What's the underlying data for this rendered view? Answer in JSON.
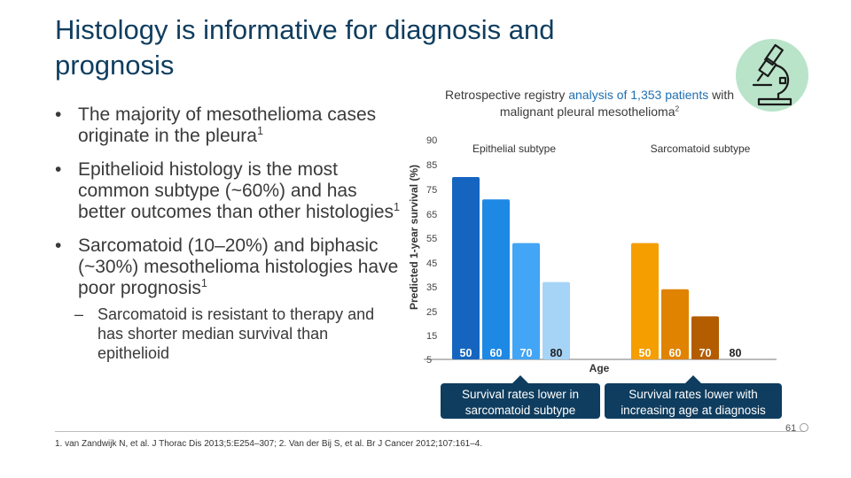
{
  "slide": {
    "title": "Histology is informative for diagnosis and prognosis",
    "page_number": "61"
  },
  "bullets": [
    {
      "text": "The majority of mesothelioma cases originate in the pleura",
      "ref": "1"
    },
    {
      "text": "Epithelioid histology is the most common subtype (~60%) and has better outcomes than other histologies",
      "ref": "1"
    },
    {
      "text": "Sarcomatoid (10–20%) and biphasic (~30%) mesothelioma histologies have poor prognosis",
      "ref": "1"
    }
  ],
  "sub_bullet": "Sarcomatoid is resistant to therapy and has shorter median survival than epithelioid",
  "heading": {
    "pre": "Retrospective registry ",
    "highlight1": "analysis of 1,353 patients",
    "post": " with malignant pleural mesothelioma",
    "ref": "2"
  },
  "callouts": {
    "left": "Survival rates lower in sarcomatoid subtype",
    "right": "Survival rates lower with increasing age at diagnosis"
  },
  "footnote": "1. van Zandwijk N, et al. J Thorac Dis 2013;5:E254–307; 2. Van der Bij S, et al. Br J Cancer 2012;107:161–4.",
  "icon": "microscope-icon",
  "colors": {
    "epithelial": [
      "#1565c0",
      "#1e88e5",
      "#42a5f5",
      "#a6d4f7"
    ],
    "sarcomatoid": [
      "#f59e00",
      "#e08300",
      "#b35c00",
      "#8a4000"
    ],
    "title": "#0f3d5f",
    "highlight": "#1f6fb2",
    "icon_bg": "#b9e4c9"
  },
  "chart_data": {
    "type": "bar",
    "ylabel": "Predicted 1-year survival (%)",
    "xlabel": "Age",
    "yticks": [
      5,
      15,
      25,
      35,
      45,
      55,
      65,
      75,
      85,
      90
    ],
    "ylim": [
      5,
      90
    ],
    "series": [
      {
        "name": "Epithelial subtype",
        "categories": [
          "50",
          "60",
          "70",
          "80"
        ],
        "values": [
          80,
          71,
          53,
          37
        ]
      },
      {
        "name": "Sarcomatoid subtype",
        "categories": [
          "50",
          "60",
          "70",
          "80"
        ],
        "values": [
          53,
          34,
          23,
          5
        ]
      }
    ]
  }
}
